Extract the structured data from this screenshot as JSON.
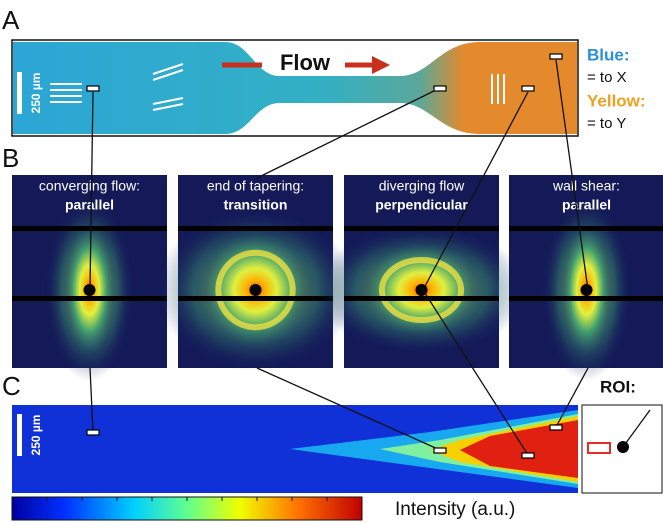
{
  "panels": {
    "a": {
      "label": "A",
      "flow": "Flow",
      "scale": "250 µm",
      "legend": [
        {
          "key": "Blue:",
          "value": "= to X"
        },
        {
          "key": "Yellow:",
          "value": "= to Y"
        }
      ]
    },
    "b": {
      "label": "B",
      "images": [
        {
          "caption": "converging flow:",
          "mode": "parallel"
        },
        {
          "caption": "end of tapering:",
          "mode": "transition"
        },
        {
          "caption": "diverging flow",
          "mode": "perpendicular"
        },
        {
          "caption": "wall shear:",
          "mode": "parallel"
        }
      ]
    },
    "c": {
      "label": "C",
      "scale": "250 µm",
      "roi": "ROI:",
      "colorbar_label": "Intensity (a.u.)"
    }
  }
}
